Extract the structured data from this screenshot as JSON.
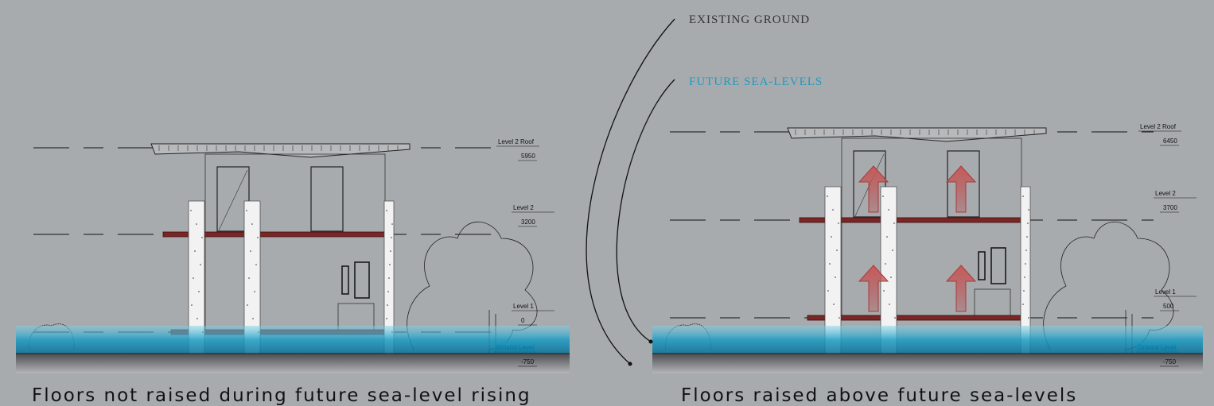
{
  "annotations": {
    "existing_ground": "EXISTING GROUND",
    "future_sea_levels": "FUTURE SEA-LEVELS"
  },
  "panels": [
    {
      "caption": "Floors not raised during future sea-level rising",
      "levels": [
        {
          "name": "Level 2 Roof",
          "elevation": "5950"
        },
        {
          "name": "Level 2",
          "elevation": "3200"
        },
        {
          "name": "Level 1",
          "elevation": "0"
        },
        {
          "name": "Ground Level",
          "elevation": "-750"
        }
      ]
    },
    {
      "caption": "Floors raised above future sea-levels",
      "levels": [
        {
          "name": "Level 2 Roof",
          "elevation": "6450"
        },
        {
          "name": "Level 2",
          "elevation": "3700"
        },
        {
          "name": "Level 1",
          "elevation": "500"
        },
        {
          "name": "Ground Level",
          "elevation": "-750"
        }
      ]
    }
  ]
}
